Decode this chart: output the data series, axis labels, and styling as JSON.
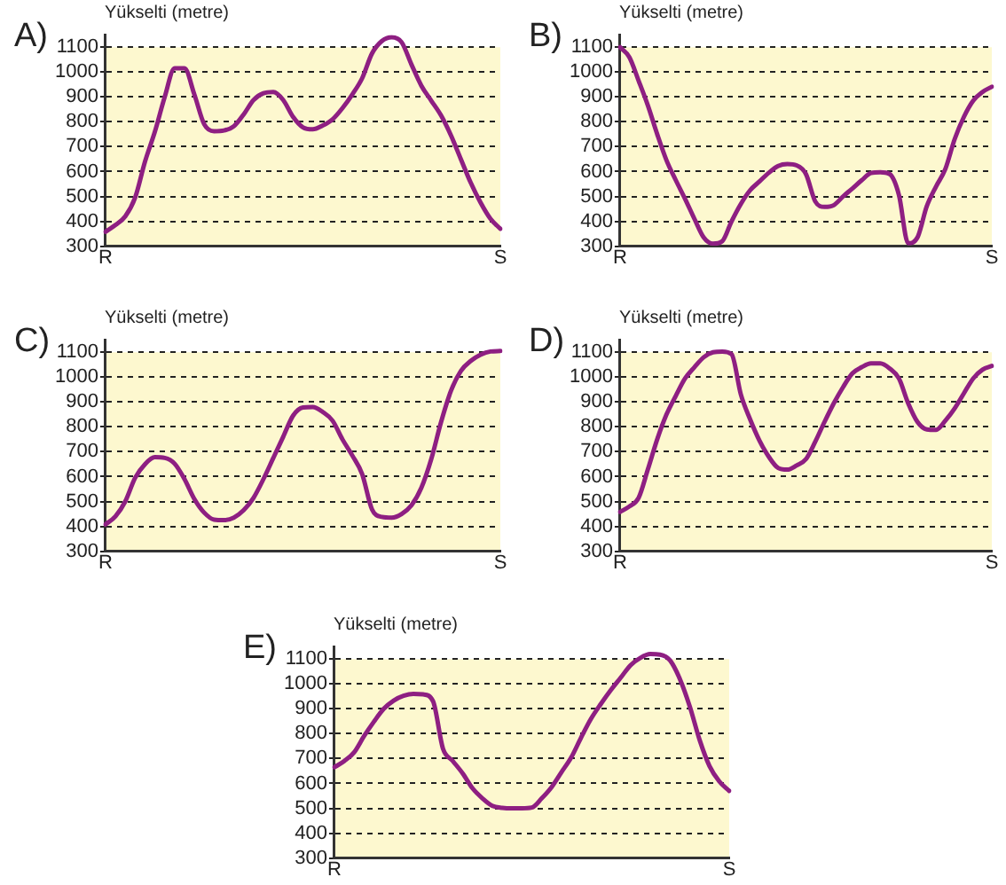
{
  "chart_data": [
    {
      "type": "line",
      "title": "A)",
      "ylabel": "Yükselti (metre)",
      "color": "#8e1f82",
      "marker": "none",
      "grid": "y",
      "ylim": [
        300,
        1150
      ],
      "yticks": [
        300,
        400,
        500,
        600,
        700,
        800,
        900,
        1000,
        1100
      ],
      "categories": [
        "R",
        null,
        null,
        null,
        null,
        null,
        null,
        null,
        null,
        null,
        null,
        null,
        null,
        null,
        null,
        null,
        null,
        null,
        null,
        null,
        null,
        null,
        null,
        null,
        null,
        null,
        null,
        null,
        null,
        null,
        null,
        null,
        null,
        null,
        null,
        null,
        null,
        null,
        null,
        null,
        "S"
      ],
      "values": [
        358,
        385,
        420,
        495,
        640,
        760,
        900,
        1015,
        1015,
        910,
        790,
        762,
        765,
        782,
        830,
        888,
        915,
        920,
        888,
        820,
        778,
        770,
        785,
        810,
        855,
        910,
        975,
        1075,
        1125,
        1140,
        1120,
        1030,
        945,
        885,
        825,
        745,
        650,
        555,
        475,
        410,
        370
      ]
    },
    {
      "type": "line",
      "title": "B)",
      "ylabel": "Yükselti (metre)",
      "color": "#8e1f82",
      "marker": "none",
      "grid": "y",
      "ylim": [
        300,
        1150
      ],
      "yticks": [
        300,
        400,
        500,
        600,
        700,
        800,
        900,
        1000,
        1100
      ],
      "categories": [
        "R",
        null,
        null,
        null,
        null,
        null,
        null,
        null,
        null,
        null,
        null,
        null,
        null,
        null,
        null,
        null,
        null,
        null,
        null,
        null,
        null,
        null,
        null,
        null,
        null,
        null,
        null,
        null,
        null,
        null,
        null,
        null,
        null,
        null,
        null,
        null,
        null,
        null,
        null,
        null,
        "S"
      ],
      "values": [
        1100,
        1060,
        965,
        865,
        750,
        645,
        565,
        490,
        410,
        335,
        310,
        320,
        400,
        470,
        525,
        560,
        595,
        622,
        630,
        625,
        590,
        480,
        458,
        465,
        500,
        532,
        565,
        594,
        597,
        590,
        507,
        312,
        335,
        460,
        540,
        610,
        730,
        820,
        885,
        920,
        941
      ]
    },
    {
      "type": "line",
      "title": "C)",
      "ylabel": "Yükselti (metre)",
      "color": "#8e1f82",
      "marker": "none",
      "grid": "y",
      "ylim": [
        300,
        1150
      ],
      "yticks": [
        300,
        400,
        500,
        600,
        700,
        800,
        900,
        1000,
        1100
      ],
      "categories": [
        "R",
        null,
        null,
        null,
        null,
        null,
        null,
        null,
        null,
        null,
        null,
        null,
        null,
        null,
        null,
        null,
        null,
        null,
        null,
        null,
        null,
        null,
        null,
        null,
        null,
        null,
        null,
        null,
        null,
        null,
        null,
        null,
        null,
        null,
        null,
        null,
        null,
        null,
        null,
        null,
        "S"
      ],
      "values": [
        408,
        440,
        500,
        595,
        650,
        678,
        675,
        652,
        590,
        510,
        455,
        427,
        425,
        435,
        465,
        515,
        590,
        675,
        760,
        845,
        878,
        880,
        860,
        825,
        750,
        685,
        610,
        468,
        438,
        435,
        450,
        485,
        555,
        670,
        820,
        945,
        1025,
        1065,
        1090,
        1103,
        1105
      ]
    },
    {
      "type": "line",
      "title": "D)",
      "ylabel": "Yükselti (metre)",
      "color": "#8e1f82",
      "marker": "none",
      "grid": "y",
      "ylim": [
        300,
        1150
      ],
      "yticks": [
        300,
        400,
        500,
        600,
        700,
        800,
        900,
        1000,
        1100
      ],
      "categories": [
        "R",
        null,
        null,
        null,
        null,
        null,
        null,
        null,
        null,
        null,
        null,
        null,
        null,
        null,
        null,
        null,
        null,
        null,
        null,
        null,
        null,
        null,
        null,
        null,
        null,
        null,
        null,
        null,
        null,
        null,
        null,
        null,
        null,
        null,
        null,
        null,
        null,
        null,
        null,
        null,
        "S"
      ],
      "values": [
        458,
        480,
        515,
        630,
        750,
        850,
        925,
        995,
        1040,
        1080,
        1100,
        1103,
        1092,
        930,
        830,
        745,
        680,
        635,
        628,
        645,
        670,
        740,
        820,
        895,
        960,
        1015,
        1040,
        1055,
        1055,
        1035,
        995,
        895,
        820,
        790,
        788,
        825,
        874,
        935,
        995,
        1030,
        1045
      ]
    },
    {
      "type": "line",
      "title": "E)",
      "ylabel": "Yükselti (metre)",
      "color": "#8e1f82",
      "marker": "none",
      "grid": "y",
      "ylim": [
        300,
        1150
      ],
      "yticks": [
        300,
        400,
        500,
        600,
        700,
        800,
        900,
        1000,
        1100
      ],
      "categories": [
        "R",
        null,
        null,
        null,
        null,
        null,
        null,
        null,
        null,
        null,
        null,
        null,
        null,
        null,
        null,
        null,
        null,
        null,
        null,
        null,
        null,
        null,
        null,
        null,
        null,
        null,
        null,
        null,
        null,
        null,
        null,
        null,
        null,
        null,
        null,
        null,
        null,
        null,
        null,
        null,
        "S"
      ],
      "values": [
        665,
        690,
        725,
        790,
        848,
        900,
        933,
        952,
        960,
        958,
        930,
        740,
        690,
        640,
        580,
        540,
        510,
        502,
        500,
        500,
        503,
        540,
        585,
        645,
        705,
        785,
        860,
        920,
        975,
        1025,
        1075,
        1105,
        1120,
        1118,
        1095,
        1020,
        910,
        775,
        670,
        608,
        570
      ]
    }
  ]
}
